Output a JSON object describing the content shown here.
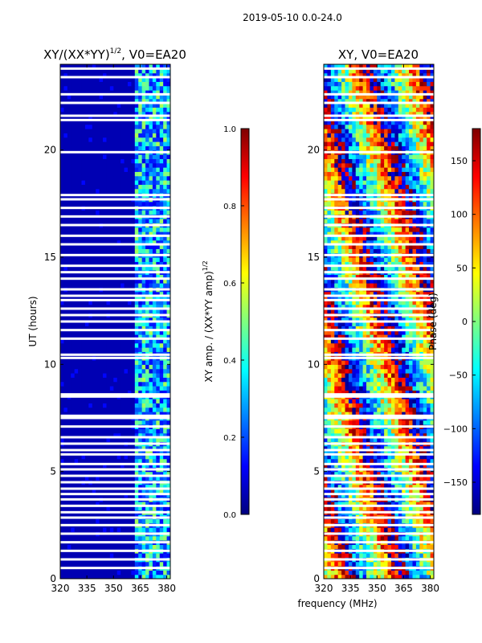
{
  "figure": {
    "suptitle": "2019-05-10 0.0-24.0",
    "shared_xlabel": "frequency (MHz)"
  },
  "colors": {
    "jet_stops": [
      "#00007f",
      "#0000ff",
      "#007fff",
      "#00ffff",
      "#7fff7f",
      "#ffff00",
      "#ff7f00",
      "#ff0000",
      "#7f0000"
    ],
    "flag_white": "#ffffff"
  },
  "chart_data": [
    {
      "type": "heatmap",
      "name": "amplitude",
      "title_text": "XY/(XX*YY)",
      "title_power": "1/2",
      "title_suffix": ", V0=EA20",
      "ylabel": "UT (hours)",
      "xlabel": "",
      "xlim": [
        320,
        382
      ],
      "ylim": [
        0,
        24
      ],
      "xticks": [
        "320",
        "335",
        "350",
        "365",
        "380"
      ],
      "xtick_values": [
        320,
        335,
        350,
        365,
        380
      ],
      "yticks": [
        "0",
        "5",
        "10",
        "15",
        "20"
      ],
      "ytick_values": [
        0,
        5,
        10,
        15,
        20
      ],
      "colorbar": {
        "label_text": "XY amp. / (XX*YY amp)",
        "label_power": "1/2",
        "range": [
          0.0,
          1.0
        ],
        "ticks": [
          "0.0",
          "0.2",
          "0.4",
          "0.6",
          "0.8",
          "1.0"
        ],
        "tick_values": [
          0.0,
          0.2,
          0.4,
          0.6,
          0.8,
          1.0
        ]
      },
      "features": {
        "background_value": 0.05,
        "signal_band_mhz": [
          362,
          382
        ],
        "signal_value_range": [
          0.2,
          0.55
        ],
        "edge_value_range": [
          0.1,
          0.2
        ]
      }
    },
    {
      "type": "heatmap",
      "name": "phase",
      "title": "XY, V0=EA20",
      "ylabel": "",
      "xlabel": "frequency (MHz)",
      "xlim": [
        320,
        382
      ],
      "ylim": [
        0,
        24
      ],
      "xticks": [
        "320",
        "335",
        "350",
        "365",
        "380"
      ],
      "xtick_values": [
        320,
        335,
        350,
        365,
        380
      ],
      "yticks": [
        "0",
        "5",
        "10",
        "15",
        "20"
      ],
      "ytick_values": [
        0,
        5,
        10,
        15,
        20
      ],
      "colorbar": {
        "label": "Phase (deg)",
        "range": [
          -180,
          180
        ],
        "ticks": [
          "−150",
          "−100",
          "−50",
          "0",
          "50",
          "100",
          "150"
        ],
        "tick_values": [
          -150,
          -100,
          -50,
          0,
          50,
          100,
          150
        ]
      },
      "features": {
        "phase_range_deg": [
          -180,
          180
        ],
        "phase_slope_deg_per_mhz": 12
      }
    }
  ],
  "flagged_ut_hours": [
    0.5,
    0.9,
    1.3,
    1.7,
    2.1,
    2.5,
    2.85,
    3.1,
    3.4,
    3.7,
    3.95,
    4.2,
    4.5,
    4.8,
    5.1,
    5.35,
    5.8,
    6.0,
    6.3,
    6.6,
    7.1,
    7.5,
    7.6,
    8.5,
    8.6,
    10.3,
    10.45,
    11.2,
    11.6,
    12.0,
    12.3,
    12.6,
    13.0,
    13.2,
    13.5,
    14.0,
    14.3,
    14.6,
    15.1,
    15.6,
    16.0,
    16.5,
    16.9,
    17.3,
    17.7,
    17.9,
    19.9,
    21.4,
    21.6,
    22.2,
    22.6,
    23.4,
    23.8
  ]
}
